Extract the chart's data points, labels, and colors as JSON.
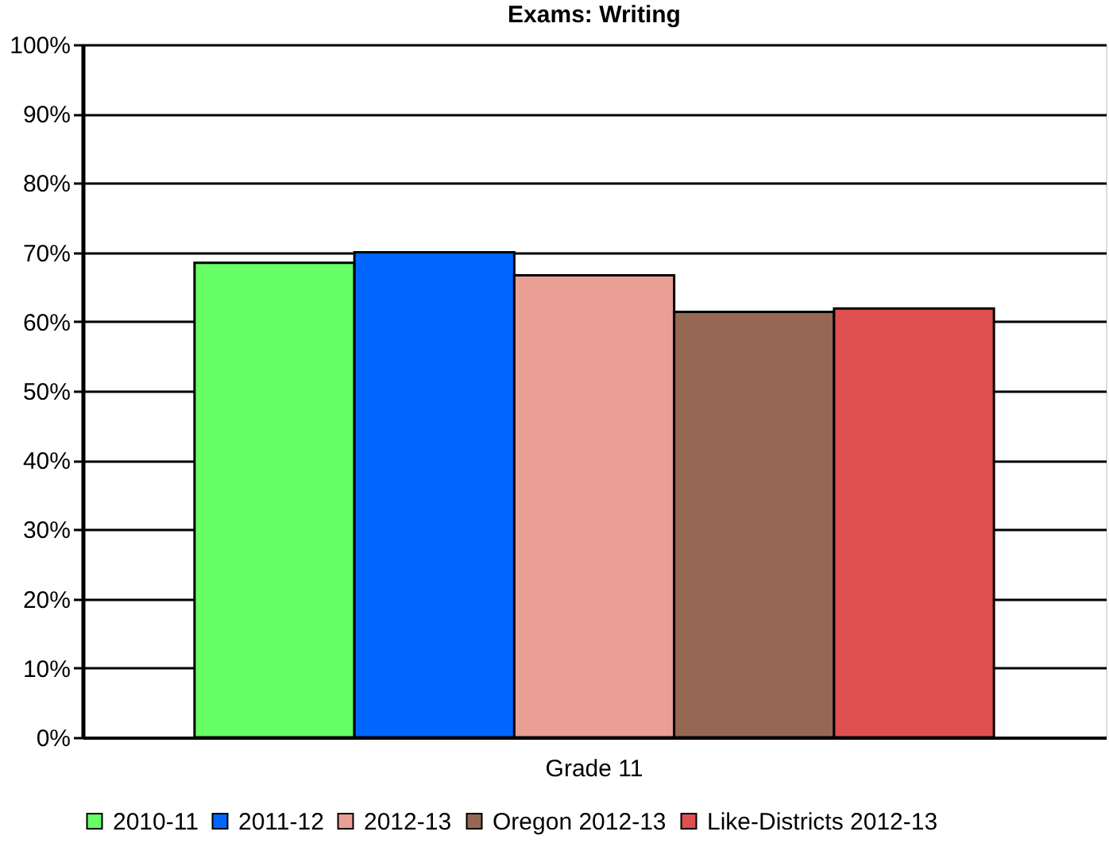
{
  "chart_data": {
    "type": "bar",
    "title": "Exams:  Writing",
    "categories": [
      "Grade 11"
    ],
    "series": [
      {
        "name": "2010-11",
        "color": "#66ff66",
        "values": [
          68.5
        ]
      },
      {
        "name": "2011-12",
        "color": "#0066ff",
        "values": [
          70
        ]
      },
      {
        "name": "2012-13",
        "color": "#ea9f94",
        "values": [
          66.7
        ]
      },
      {
        "name": "Oregon 2012-13",
        "color": "#966753",
        "values": [
          61.4
        ]
      },
      {
        "name": "Like-Districts 2012-13",
        "color": "#df5050",
        "values": [
          61.9
        ]
      }
    ],
    "ylim": [
      0,
      100
    ],
    "yticks": [
      {
        "value": 0,
        "label": "0%"
      },
      {
        "value": 10,
        "label": "10%"
      },
      {
        "value": 20,
        "label": "20%"
      },
      {
        "value": 30,
        "label": "30%"
      },
      {
        "value": 40,
        "label": "40%"
      },
      {
        "value": 50,
        "label": "50%"
      },
      {
        "value": 60,
        "label": "60%"
      },
      {
        "value": 70,
        "label": "70%"
      },
      {
        "value": 80,
        "label": "80%"
      },
      {
        "value": 90,
        "label": "90%"
      },
      {
        "value": 100,
        "label": "100%"
      }
    ],
    "grid": "y",
    "legend": "bottom"
  }
}
